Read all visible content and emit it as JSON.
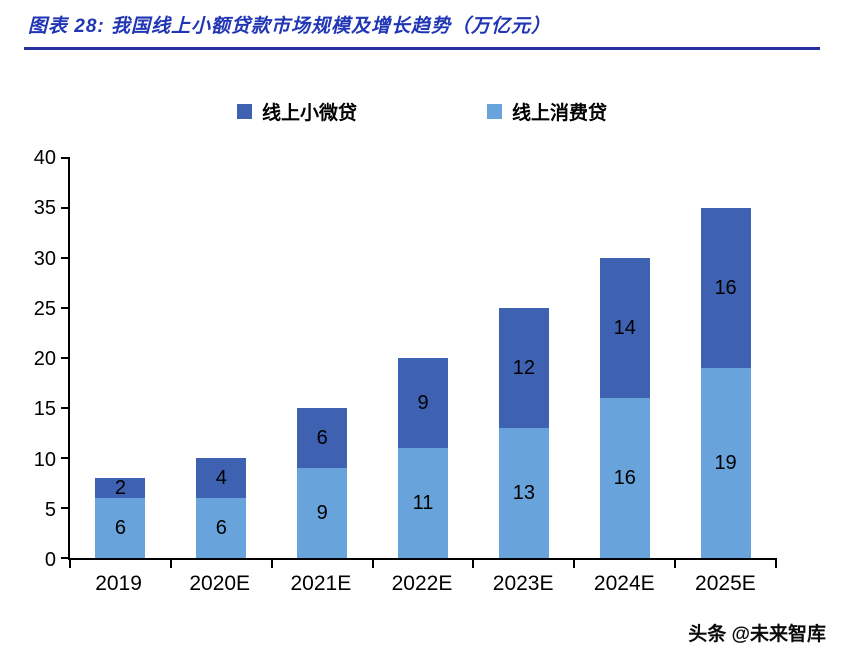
{
  "header": {
    "title": "图表 28:  我国线上小额贷款市场规模及增长趋势（万亿元）"
  },
  "colors": {
    "title_blue": "#2136B4",
    "rule_blue": "#27319F",
    "bar_dark_blue": "#3E62B1",
    "bar_light_blue": "#68A4DB"
  },
  "legend": [
    {
      "label": "线上小微贷",
      "color": "#3E62B1"
    },
    {
      "label": "线上消费贷",
      "color": "#68A4DB"
    }
  ],
  "watermark": {
    "text": "头条 @未来智库"
  },
  "chart_data": {
    "type": "bar",
    "stacked": true,
    "title": "我国线上小额贷款市场规模及增长趋势（万亿元）",
    "categories": [
      "2019",
      "2020E",
      "2021E",
      "2022E",
      "2023E",
      "2024E",
      "2025E"
    ],
    "series": [
      {
        "name": "线上消费贷",
        "color": "#68A4DB",
        "values": [
          6,
          6,
          9,
          11,
          13,
          16,
          19
        ]
      },
      {
        "name": "线上小微贷",
        "color": "#3E62B1",
        "values": [
          2,
          4,
          6,
          9,
          12,
          14,
          16
        ]
      }
    ],
    "totals": [
      8,
      10,
      15,
      20,
      25,
      30,
      35
    ],
    "xlabel": "",
    "ylabel": "",
    "ylim": [
      0,
      40
    ],
    "ytick_step": 5,
    "grid": false,
    "legend_position": "top"
  }
}
